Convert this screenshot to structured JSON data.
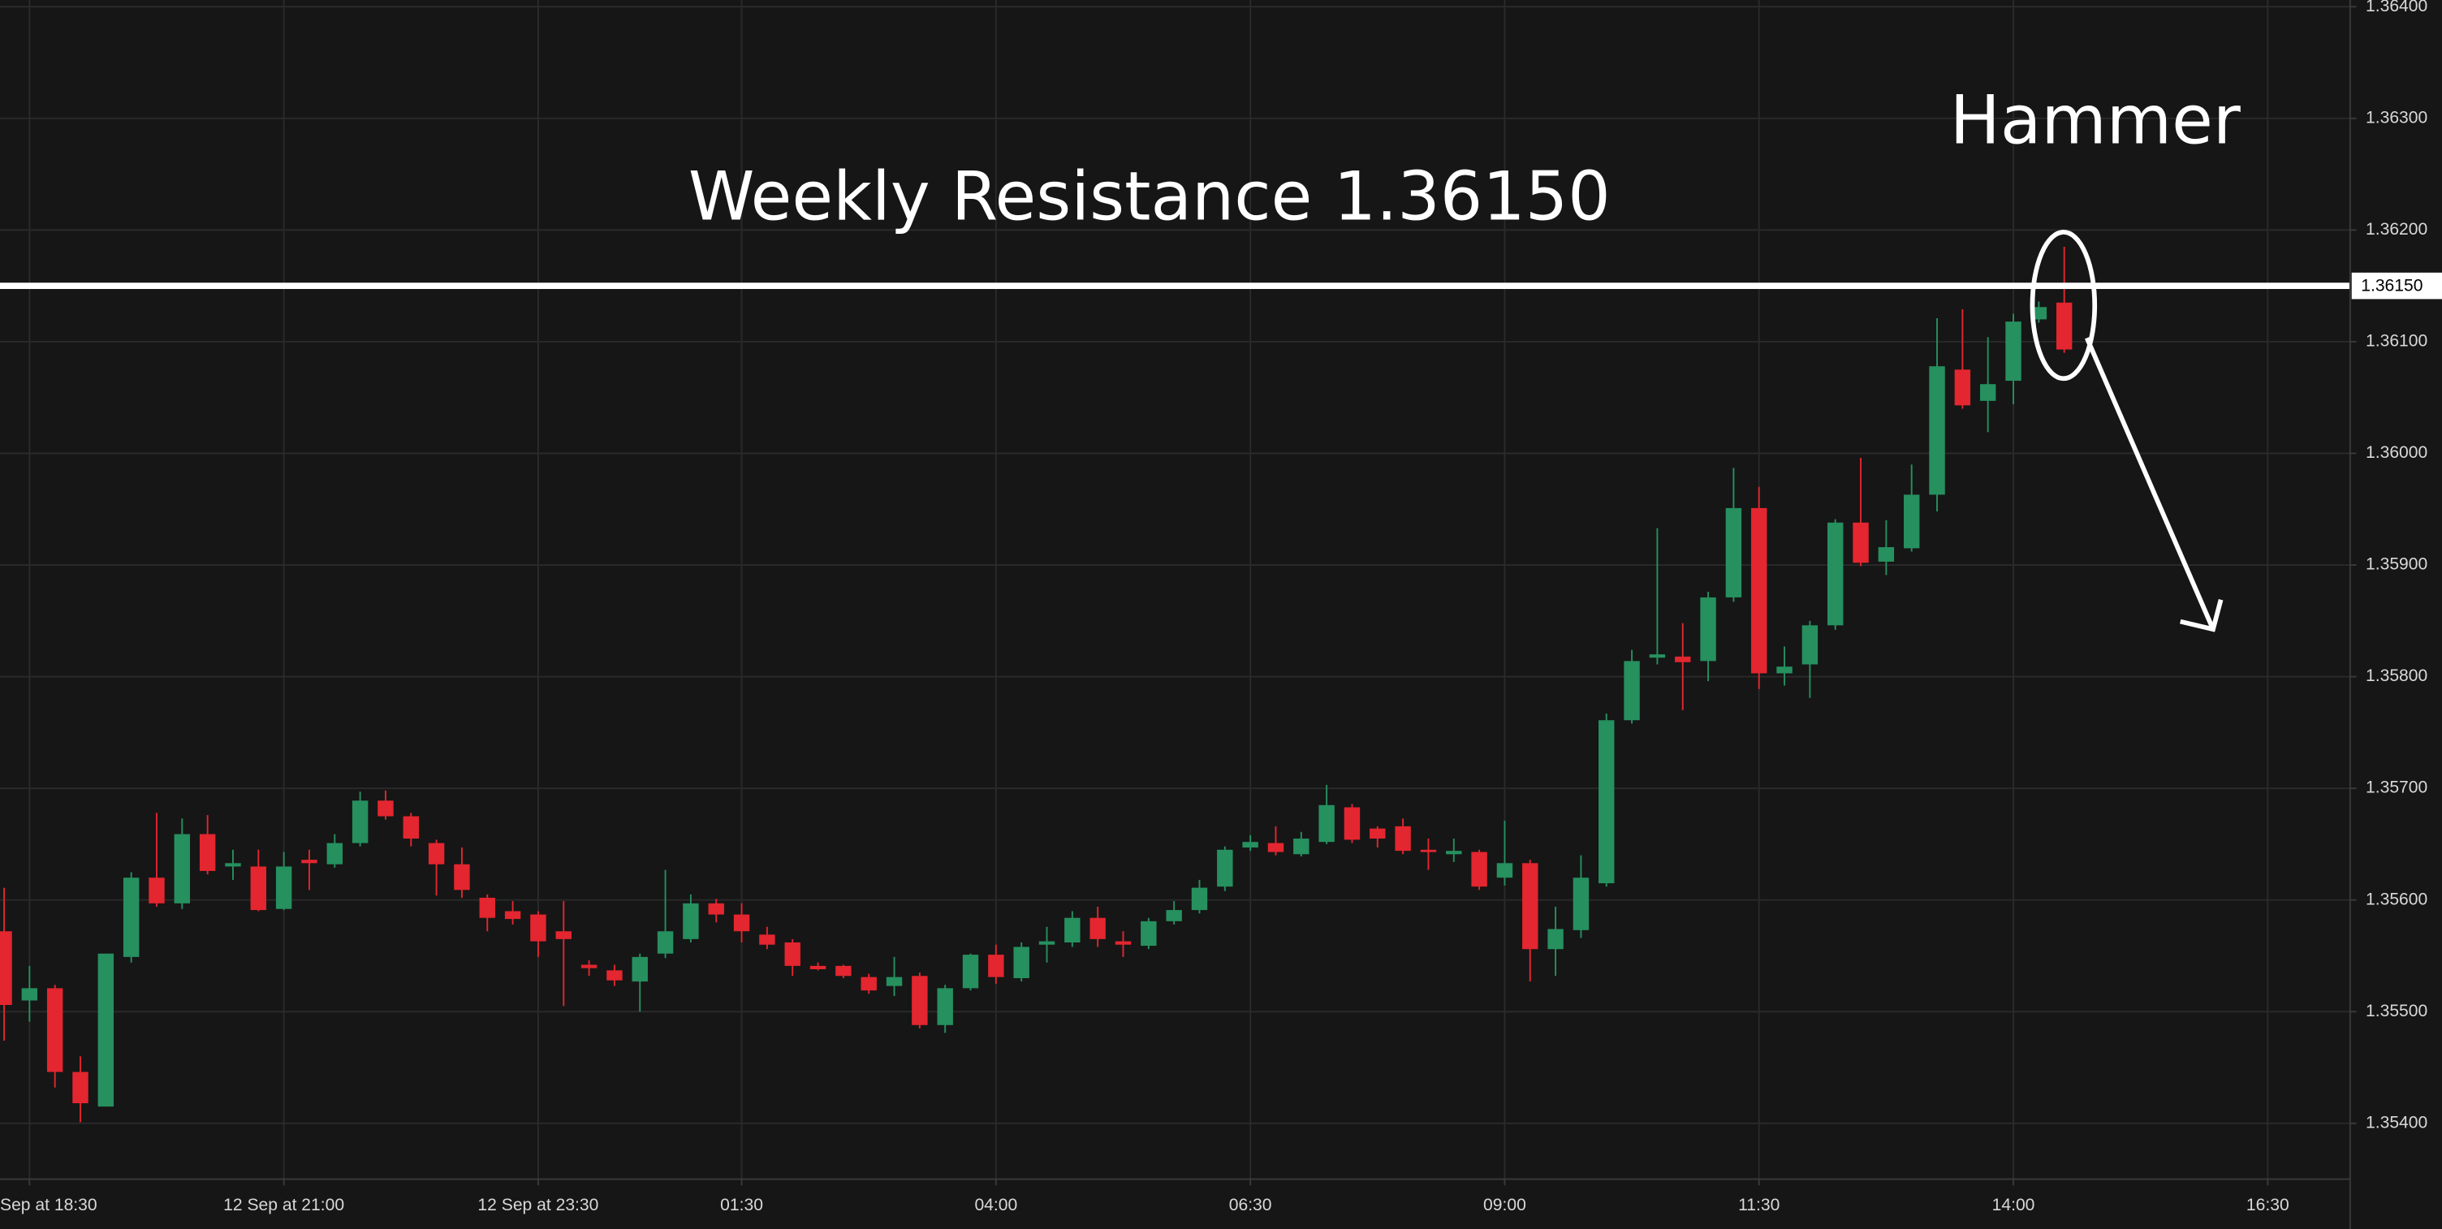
{
  "chart_data": {
    "type": "candlestick",
    "x": [
      -1,
      0,
      1,
      2,
      3,
      4,
      5,
      6,
      7,
      8,
      9,
      10,
      11,
      12,
      13,
      14,
      15,
      16,
      17,
      18,
      19,
      20,
      21,
      22,
      23,
      24,
      25,
      26,
      27,
      28,
      29,
      30,
      31,
      32,
      33,
      34,
      35,
      36,
      37,
      38,
      39,
      40,
      41,
      42,
      43,
      44,
      45,
      46,
      47,
      48,
      49,
      50,
      51,
      52,
      53,
      54,
      55,
      56,
      57,
      58,
      59,
      60,
      61,
      62,
      63,
      64,
      65,
      66,
      67,
      68,
      69,
      70,
      71,
      72,
      73,
      74,
      75,
      76,
      77,
      78,
      79,
      80
    ],
    "open": [
      1.35572,
      1.3551,
      1.35521,
      1.35446,
      1.35415,
      1.35549,
      1.3562,
      1.35597,
      1.35659,
      1.3563,
      1.3563,
      1.35592,
      1.35636,
      1.35632,
      1.35651,
      1.35689,
      1.35675,
      1.35651,
      1.35632,
      1.35602,
      1.3559,
      1.35587,
      1.35572,
      1.35542,
      1.35537,
      1.35527,
      1.35552,
      1.35565,
      1.35597,
      1.35587,
      1.35569,
      1.35562,
      1.35541,
      1.35541,
      1.35531,
      1.35523,
      1.35532,
      1.35488,
      1.35521,
      1.35551,
      1.3553,
      1.3556,
      1.35562,
      1.35584,
      1.35563,
      1.35559,
      1.35581,
      1.35591,
      1.35612,
      1.35647,
      1.35651,
      1.35641,
      1.35652,
      1.35683,
      1.35664,
      1.35666,
      1.35645,
      1.35641,
      1.35643,
      1.3562,
      1.35633,
      1.35556,
      1.35573,
      1.35615,
      1.35761,
      1.35817,
      1.35818,
      1.35814,
      1.35871,
      1.35951,
      1.35803,
      1.35811,
      1.35846,
      1.35938,
      1.35903,
      1.35915,
      1.35963,
      1.36075,
      1.36047,
      1.36065,
      1.3612,
      1.36135
    ],
    "high": [
      1.35611,
      1.35541,
      1.35524,
      1.3546,
      1.35552,
      1.35625,
      1.35678,
      1.35673,
      1.35676,
      1.35645,
      1.35645,
      1.35643,
      1.35645,
      1.35659,
      1.35697,
      1.35698,
      1.35678,
      1.35654,
      1.35647,
      1.35605,
      1.35599,
      1.3559,
      1.35599,
      1.35546,
      1.35542,
      1.35552,
      1.35627,
      1.35605,
      1.35601,
      1.35597,
      1.35576,
      1.35565,
      1.35544,
      1.35542,
      1.35534,
      1.35549,
      1.35535,
      1.35524,
      1.35552,
      1.3556,
      1.35562,
      1.35576,
      1.3559,
      1.35594,
      1.35572,
      1.35584,
      1.35599,
      1.35618,
      1.35648,
      1.35658,
      1.35666,
      1.35661,
      1.35703,
      1.35686,
      1.35666,
      1.35673,
      1.35655,
      1.35655,
      1.35645,
      1.35671,
      1.35636,
      1.35594,
      1.3564,
      1.35767,
      1.35824,
      1.35933,
      1.35848,
      1.35876,
      1.35987,
      1.3597,
      1.35827,
      1.3585,
      1.35941,
      1.35996,
      1.3594,
      1.3599,
      1.36121,
      1.36129,
      1.36104,
      1.36125,
      1.36136,
      1.36185
    ],
    "low": [
      1.35474,
      1.35491,
      1.35432,
      1.35401,
      1.35415,
      1.35544,
      1.35594,
      1.35592,
      1.35623,
      1.35618,
      1.3559,
      1.35591,
      1.35609,
      1.35629,
      1.35648,
      1.35672,
      1.35648,
      1.35604,
      1.35602,
      1.35572,
      1.35578,
      1.35549,
      1.35505,
      1.35532,
      1.35523,
      1.355,
      1.35548,
      1.35562,
      1.3558,
      1.35562,
      1.35556,
      1.35532,
      1.35537,
      1.3553,
      1.35516,
      1.35514,
      1.35485,
      1.35481,
      1.35519,
      1.35525,
      1.35527,
      1.35544,
      1.35558,
      1.35558,
      1.35549,
      1.35556,
      1.35578,
      1.35588,
      1.35608,
      1.35644,
      1.3564,
      1.35639,
      1.3565,
      1.35651,
      1.35647,
      1.35641,
      1.35627,
      1.35634,
      1.35609,
      1.35613,
      1.35527,
      1.35532,
      1.35566,
      1.35612,
      1.35758,
      1.35811,
      1.3577,
      1.35796,
      1.35867,
      1.35789,
      1.35792,
      1.35781,
      1.35842,
      1.35899,
      1.35891,
      1.35912,
      1.35948,
      1.3604,
      1.36019,
      1.36044,
      1.36117,
      1.3609
    ],
    "close": [
      1.35506,
      1.35521,
      1.35446,
      1.35418,
      1.35552,
      1.3562,
      1.35597,
      1.35659,
      1.35626,
      1.35633,
      1.35591,
      1.3563,
      1.35633,
      1.35651,
      1.35689,
      1.35675,
      1.35655,
      1.35632,
      1.35609,
      1.35584,
      1.35583,
      1.35563,
      1.35565,
      1.35539,
      1.35528,
      1.35549,
      1.35572,
      1.35597,
      1.35587,
      1.35572,
      1.3556,
      1.35541,
      1.35538,
      1.35532,
      1.35519,
      1.35531,
      1.35488,
      1.35521,
      1.35551,
      1.35531,
      1.35558,
      1.35563,
      1.35584,
      1.35565,
      1.3556,
      1.35581,
      1.35591,
      1.35611,
      1.35645,
      1.35652,
      1.35643,
      1.35655,
      1.35685,
      1.35654,
      1.35655,
      1.35644,
      1.35643,
      1.35644,
      1.35612,
      1.35633,
      1.35556,
      1.35574,
      1.3562,
      1.35761,
      1.35814,
      1.3582,
      1.35813,
      1.35871,
      1.35951,
      1.35803,
      1.35809,
      1.35846,
      1.35938,
      1.35902,
      1.35916,
      1.35963,
      1.36078,
      1.36043,
      1.36062,
      1.36118,
      1.36131,
      1.36093
    ],
    "up_color": "#26905f",
    "down_color": "#e3262f",
    "xlim": [
      -1.16,
      91.24
    ],
    "xticks": [
      {
        "value": 0,
        "label": "Sep at 18:30"
      },
      {
        "value": 10,
        "label": "12 Sep at 21:00"
      },
      {
        "value": 20,
        "label": "12 Sep at 23:30"
      },
      {
        "value": 28,
        "label": "01:30"
      },
      {
        "value": 38,
        "label": "04:00"
      },
      {
        "value": 48,
        "label": "06:30"
      },
      {
        "value": 58,
        "label": "09:00"
      },
      {
        "value": 68,
        "label": "11:30"
      },
      {
        "value": 78,
        "label": "14:00"
      },
      {
        "value": 88,
        "label": "16:30"
      }
    ],
    "ylim": [
      1.3535,
      1.36406
    ],
    "yticks": [
      {
        "value": 1.354,
        "label": "1.35400"
      },
      {
        "value": 1.355,
        "label": "1.35500"
      },
      {
        "value": 1.356,
        "label": "1.35600"
      },
      {
        "value": 1.357,
        "label": "1.35700"
      },
      {
        "value": 1.358,
        "label": "1.35800"
      },
      {
        "value": 1.359,
        "label": "1.35900"
      },
      {
        "value": 1.36,
        "label": "1.36000"
      },
      {
        "value": 1.361,
        "label": "1.36100"
      },
      {
        "value": 1.362,
        "label": "1.36200"
      },
      {
        "value": 1.363,
        "label": "1.36300"
      },
      {
        "value": 1.364,
        "label": "1.36400"
      }
    ],
    "grid": true,
    "resistance": {
      "value": 1.3615,
      "label": "1.36150"
    },
    "annotations": [
      "Weekly Resistance 1.36150",
      "Hammer"
    ]
  }
}
